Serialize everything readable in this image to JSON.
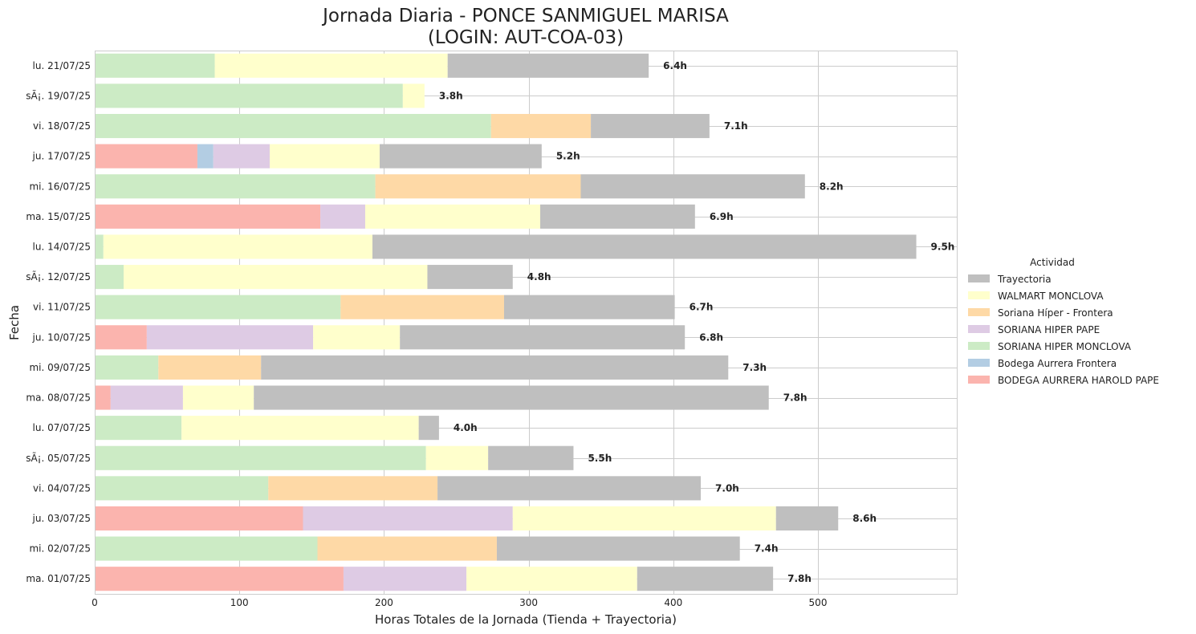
{
  "chart_data": {
    "type": "bar",
    "orientation": "horizontal",
    "stacked": true,
    "title_line1": "Jornada Diaria - PONCE SANMIGUEL MARISA",
    "title_line2": "(LOGIN: AUT-COA-03)",
    "xlabel": "Horas Totales de la Jornada (Tienda + Trayectoria)",
    "ylabel": "Fecha",
    "xlim": [
      0,
      596
    ],
    "xticks": [
      0,
      100,
      200,
      300,
      400,
      500
    ],
    "grid": true,
    "legend": {
      "title": "Actividad",
      "placement": "right",
      "order": [
        "Trayectoria",
        "WALMART MONCLOVA",
        "Soriana Híper - Frontera",
        "SORIANA HIPER PAPE",
        "SORIANA HIPER MONCLOVA",
        "Bodega Aurrera Frontera",
        "BODEGA AURRERA HAROLD PAPE"
      ]
    },
    "stack_order": [
      "BODEGA AURRERA HAROLD PAPE",
      "Bodega Aurrera Frontera",
      "SORIANA HIPER MONCLOVA",
      "SORIANA HIPER PAPE",
      "Soriana Híper - Frontera",
      "WALMART MONCLOVA",
      "Trayectoria"
    ],
    "series_colors": {
      "Trayectoria": "#bfbfbf",
      "WALMART MONCLOVA": "#ffffcc",
      "Soriana Híper - Frontera": "#fed9a6",
      "SORIANA HIPER PAPE": "#decbe4",
      "SORIANA HIPER MONCLOVA": "#ccebc5",
      "Bodega Aurrera Frontera": "#b3cde3",
      "BODEGA AURRERA HAROLD PAPE": "#fbb4ae"
    },
    "rows": [
      {
        "date": "lu. 21/07/25",
        "total": "6.4h",
        "segments": {
          "SORIANA HIPER MONCLOVA": 83,
          "WALMART MONCLOVA": 161,
          "Trayectoria": 139
        }
      },
      {
        "date": "sÃ¡. 19/07/25",
        "total": "3.8h",
        "segments": {
          "SORIANA HIPER MONCLOVA": 213,
          "WALMART MONCLOVA": 15
        }
      },
      {
        "date": "vi. 18/07/25",
        "total": "7.1h",
        "segments": {
          "SORIANA HIPER MONCLOVA": 274,
          "Soriana Híper - Frontera": 69,
          "Trayectoria": 82
        }
      },
      {
        "date": "ju. 17/07/25",
        "total": "5.2h",
        "segments": {
          "BODEGA AURRERA HAROLD PAPE": 71,
          "Bodega Aurrera Frontera": 11,
          "SORIANA HIPER PAPE": 39,
          "WALMART MONCLOVA": 76,
          "Trayectoria": 112
        }
      },
      {
        "date": "mi. 16/07/25",
        "total": "8.2h",
        "segments": {
          "SORIANA HIPER MONCLOVA": 194,
          "Soriana Híper - Frontera": 142,
          "Trayectoria": 155
        }
      },
      {
        "date": "ma. 15/07/25",
        "total": "6.9h",
        "segments": {
          "BODEGA AURRERA HAROLD PAPE": 156,
          "SORIANA HIPER PAPE": 31,
          "WALMART MONCLOVA": 121,
          "Trayectoria": 107
        }
      },
      {
        "date": "lu. 14/07/25",
        "total": "9.5h",
        "segments": {
          "SORIANA HIPER MONCLOVA": 6,
          "WALMART MONCLOVA": 186,
          "Trayectoria": 376
        }
      },
      {
        "date": "sÃ¡. 12/07/25",
        "total": "4.8h",
        "segments": {
          "SORIANA HIPER MONCLOVA": 20,
          "WALMART MONCLOVA": 210,
          "Trayectoria": 59
        }
      },
      {
        "date": "vi. 11/07/25",
        "total": "6.7h",
        "segments": {
          "SORIANA HIPER MONCLOVA": 170,
          "Soriana Híper - Frontera": 113,
          "Trayectoria": 118
        }
      },
      {
        "date": "ju. 10/07/25",
        "total": "6.8h",
        "segments": {
          "BODEGA AURRERA HAROLD PAPE": 36,
          "SORIANA HIPER PAPE": 115,
          "WALMART MONCLOVA": 60,
          "Trayectoria": 197
        }
      },
      {
        "date": "mi. 09/07/25",
        "total": "7.3h",
        "segments": {
          "SORIANA HIPER MONCLOVA": 44,
          "Soriana Híper - Frontera": 71,
          "Trayectoria": 323
        }
      },
      {
        "date": "ma. 08/07/25",
        "total": "7.8h",
        "segments": {
          "BODEGA AURRERA HAROLD PAPE": 11,
          "SORIANA HIPER PAPE": 50,
          "WALMART MONCLOVA": 49,
          "Trayectoria": 356
        }
      },
      {
        "date": "lu. 07/07/25",
        "total": "4.0h",
        "segments": {
          "SORIANA HIPER MONCLOVA": 60,
          "WALMART MONCLOVA": 164,
          "Trayectoria": 14
        }
      },
      {
        "date": "sÃ¡. 05/07/25",
        "total": "5.5h",
        "segments": {
          "SORIANA HIPER MONCLOVA": 229,
          "WALMART MONCLOVA": 43,
          "Trayectoria": 59
        }
      },
      {
        "date": "vi. 04/07/25",
        "total": "7.0h",
        "segments": {
          "SORIANA HIPER MONCLOVA": 120,
          "Soriana Híper - Frontera": 117,
          "Trayectoria": 182
        }
      },
      {
        "date": "ju. 03/07/25",
        "total": "8.6h",
        "segments": {
          "BODEGA AURRERA HAROLD PAPE": 144,
          "SORIANA HIPER PAPE": 145,
          "WALMART MONCLOVA": 182,
          "Trayectoria": 43
        }
      },
      {
        "date": "mi. 02/07/25",
        "total": "7.4h",
        "segments": {
          "SORIANA HIPER MONCLOVA": 154,
          "Soriana Híper - Frontera": 124,
          "Trayectoria": 168
        }
      },
      {
        "date": "ma. 01/07/25",
        "total": "7.8h",
        "segments": {
          "BODEGA AURRERA HAROLD PAPE": 172,
          "SORIANA HIPER PAPE": 85,
          "WALMART MONCLOVA": 118,
          "Trayectoria": 94
        }
      }
    ]
  }
}
